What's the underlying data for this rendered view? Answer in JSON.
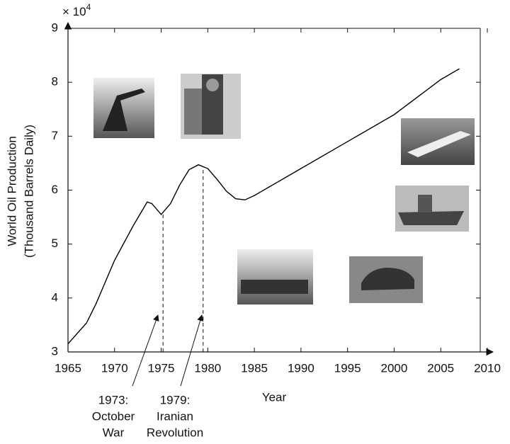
{
  "chart_data": {
    "type": "line",
    "x_label": "Year",
    "y_label": [
      "World Oil Production",
      "(Thousand Barrels Daily)"
    ],
    "y_multiplier": {
      "base": "× 10",
      "exponent": "4"
    },
    "x": [
      1965,
      1967,
      1968,
      1970,
      1972,
      1973.5,
      1974,
      1975,
      1976,
      1977,
      1978,
      1979,
      1980,
      1981,
      1982,
      1983,
      1984,
      1985,
      1990,
      1995,
      2000,
      2005,
      2007
    ],
    "series": [
      {
        "name": "World Oil Production",
        "color": "#000000",
        "values": [
          3.15,
          3.54,
          3.89,
          4.7,
          5.34,
          5.78,
          5.75,
          5.55,
          5.75,
          6.1,
          6.38,
          6.47,
          6.4,
          6.2,
          5.98,
          5.84,
          5.82,
          5.9,
          6.4,
          6.9,
          7.4,
          8.05,
          8.25
        ]
      }
    ],
    "xlim": [
      1965,
      2010
    ],
    "xticks": [
      1965,
      1970,
      1975,
      1980,
      1985,
      1990,
      1995,
      2000,
      2005,
      2010
    ],
    "ylim": [
      3,
      9
    ],
    "yticks": [
      3,
      4,
      5,
      6,
      7,
      8,
      9
    ],
    "grid": false,
    "annotations": [
      {
        "lines": [
          "1973:",
          "October",
          "War"
        ],
        "x": 1975.2
      },
      {
        "lines": [
          "1979:",
          "Iranian",
          "Revolution"
        ],
        "x": 1979.5
      }
    ]
  }
}
